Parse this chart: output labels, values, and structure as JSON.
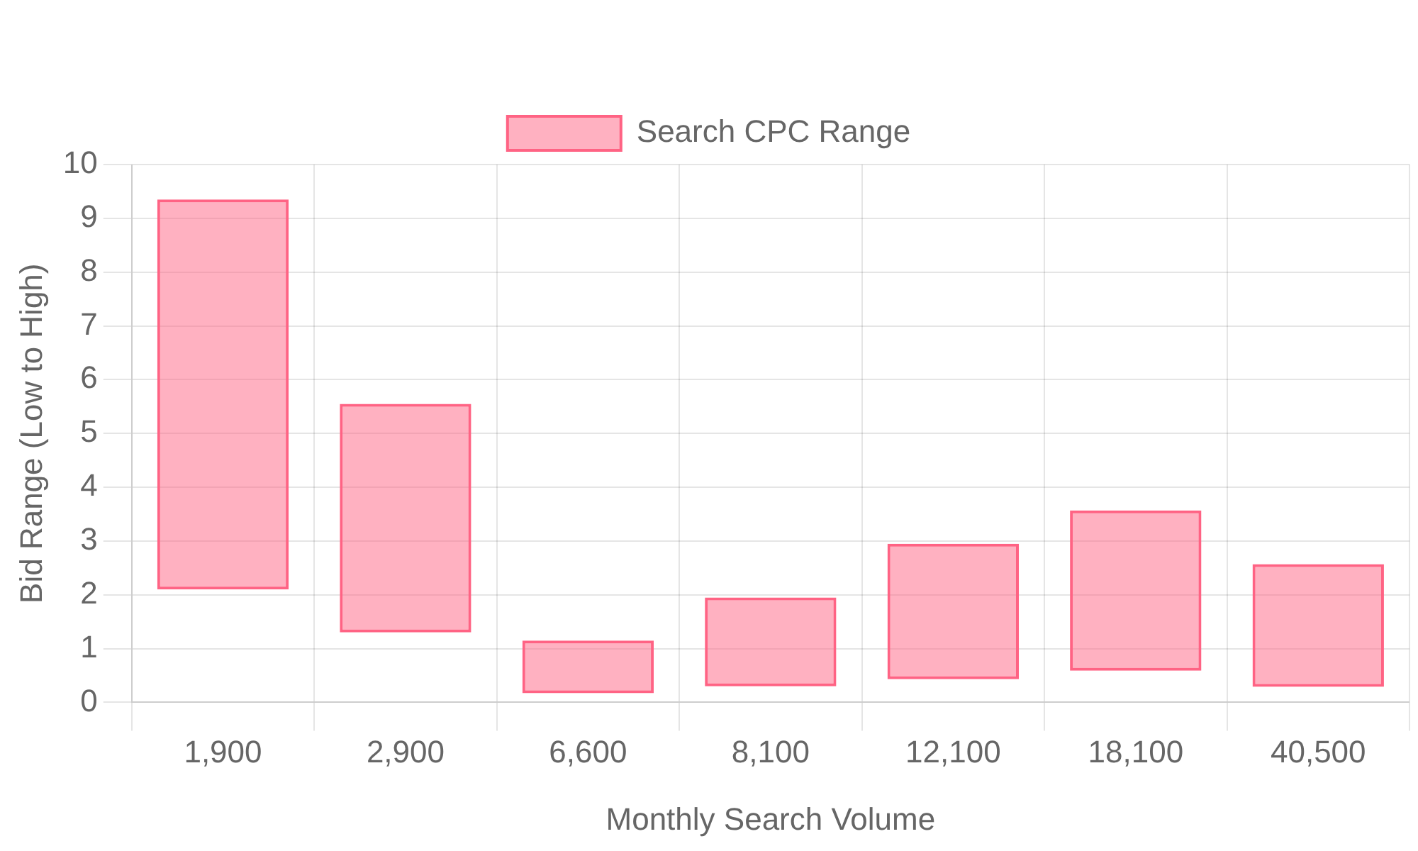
{
  "chart_data": {
    "type": "bar",
    "xlabel": "Monthly Search Volume",
    "ylabel": "Bid Range (Low to High)",
    "categories": [
      "1,900",
      "2,900",
      "6,600",
      "8,100",
      "12,100",
      "18,100",
      "40,500"
    ],
    "series": [
      {
        "name": "Search CPC Range",
        "color": "#ff6384",
        "base": [
          2.1,
          1.3,
          0.17,
          0.3,
          0.43,
          0.59,
          0.29
        ],
        "values": [
          7.25,
          4.25,
          0.98,
          1.65,
          2.52,
          2.98,
          2.28
        ]
      }
    ],
    "ylim": [
      0,
      10
    ],
    "yticks": [
      0,
      1,
      2,
      3,
      4,
      5,
      6,
      7,
      8,
      9,
      10
    ],
    "grid": true,
    "legend": "top"
  }
}
